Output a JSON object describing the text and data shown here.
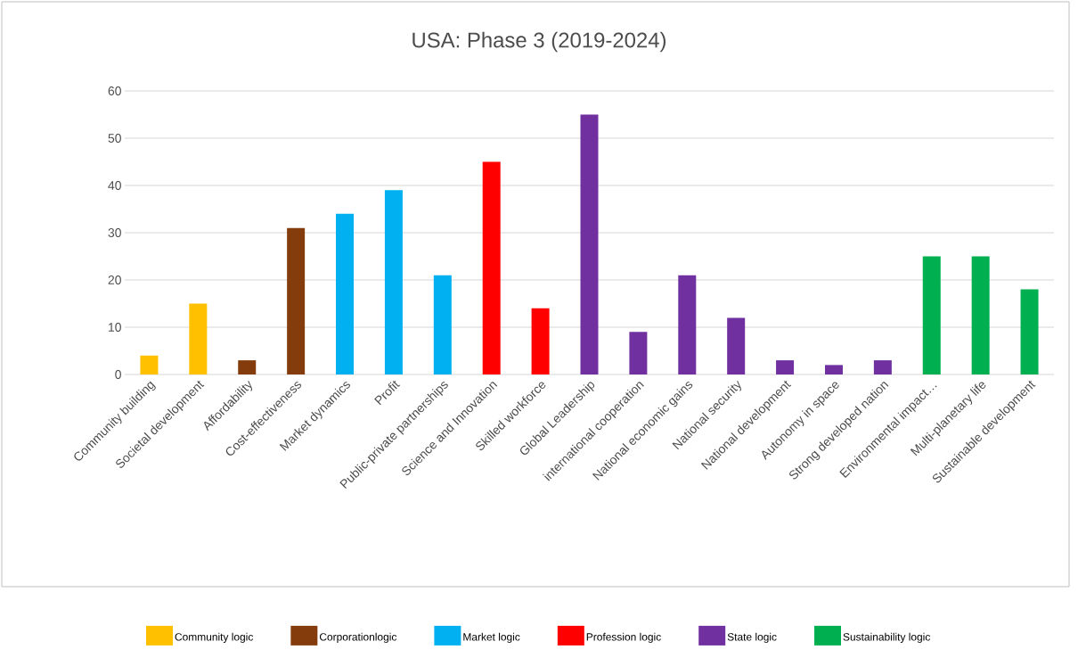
{
  "chart_data": {
    "type": "bar",
    "title": "USA: Phase 3 (2019-2024)",
    "categories": [
      "Community building",
      "Societal development",
      "Affordability",
      "Cost-effectiveness",
      "Market dynamics",
      "Profit",
      "Public-private partnerships",
      "Science and Innovation",
      "Skilled workforce",
      "Global Leadership",
      "international cooperation",
      "National economic gains",
      "National security",
      "National development",
      "Autonomy in space",
      "Strong developed nation",
      "Environmental impact…",
      "Multi-planetary life",
      "Sustainable development"
    ],
    "series": [
      {
        "name": "Community logic",
        "color": "#ffc000",
        "values": [
          4,
          15,
          null,
          null,
          null,
          null,
          null,
          null,
          null,
          null,
          null,
          null,
          null,
          null,
          null,
          null,
          null,
          null,
          null
        ]
      },
      {
        "name": "Corporationlogic",
        "color": "#843c0c",
        "values": [
          null,
          null,
          3,
          31,
          null,
          null,
          null,
          null,
          null,
          null,
          null,
          null,
          null,
          null,
          null,
          null,
          null,
          null,
          null
        ]
      },
      {
        "name": "Market logic",
        "color": "#00b0f0",
        "values": [
          null,
          null,
          null,
          null,
          34,
          39,
          21,
          null,
          null,
          null,
          null,
          null,
          null,
          null,
          null,
          null,
          null,
          null,
          null
        ]
      },
      {
        "name": "Profession logic",
        "color": "#ff0000",
        "values": [
          null,
          null,
          null,
          null,
          null,
          null,
          null,
          45,
          14,
          null,
          null,
          null,
          null,
          null,
          null,
          null,
          null,
          null,
          null
        ]
      },
      {
        "name": "State logic",
        "color": "#7030a0",
        "values": [
          null,
          null,
          null,
          null,
          null,
          null,
          null,
          null,
          null,
          55,
          9,
          21,
          12,
          3,
          2,
          3,
          null,
          null,
          null
        ]
      },
      {
        "name": "Sustainability logic",
        "color": "#00b050",
        "values": [
          null,
          null,
          null,
          null,
          null,
          null,
          null,
          null,
          null,
          null,
          null,
          null,
          null,
          null,
          null,
          null,
          25,
          25,
          18
        ]
      }
    ],
    "ylim": [
      0,
      60
    ],
    "yticks": [
      0,
      10,
      20,
      30,
      40,
      50,
      60
    ],
    "grid": "y",
    "legend": "bottom"
  }
}
